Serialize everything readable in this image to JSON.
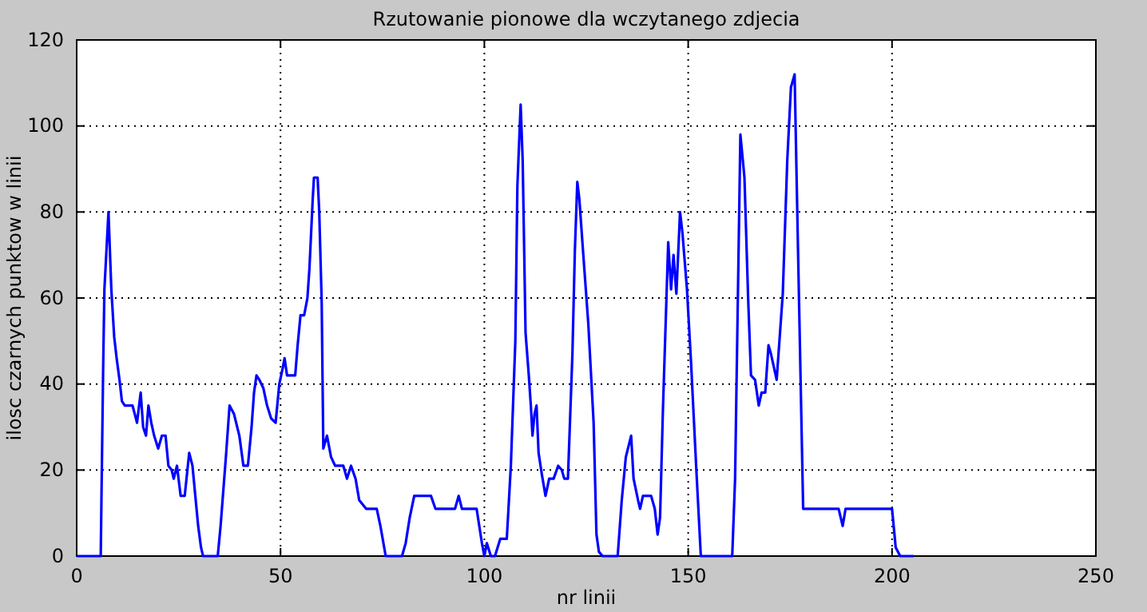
{
  "chart_data": {
    "type": "line",
    "title": "Rzutowanie pionowe dla wczytanego zdjecia",
    "xlabel": "nr linii",
    "ylabel": "ilosc czarnych punktow w linii",
    "xlim": [
      0,
      250
    ],
    "ylim": [
      0,
      120
    ],
    "xticks": [
      0,
      50,
      100,
      150,
      200,
      250
    ],
    "yticks": [
      0,
      20,
      40,
      60,
      80,
      100,
      120
    ],
    "grid": true,
    "line_style": "solid",
    "marker": "none",
    "series": [
      {
        "color": "#0000ff",
        "x": [
          0,
          5.9,
          6.1,
          6.5,
          6.8,
          7.8,
          8.5,
          9.2,
          9.8,
          10.5,
          11.1,
          11.8,
          13.7,
          14.8,
          15.7,
          16.3,
          17,
          17.6,
          18.3,
          19,
          20,
          20.9,
          21.8,
          22.5,
          23.3,
          23.8,
          24.6,
          25.5,
          26.5,
          27.6,
          28.4,
          29.2,
          29.8,
          30.5,
          31,
          34.6,
          35.3,
          36.6,
          37.5,
          38.6,
          39.9,
          40.9,
          42,
          42.9,
          43.5,
          44.1,
          44.8,
          45.8,
          46.7,
          47.7,
          48.8,
          49.7,
          50.6,
          51,
          51.6,
          53.6,
          54.2,
          54.9,
          55.8,
          56.6,
          57.1,
          57.9,
          58.2,
          59.1,
          59.5,
          60.1,
          60.5,
          61.4,
          62.4,
          63.4,
          65.4,
          66.3,
          67.3,
          68.4,
          69.3,
          71,
          73.6,
          74.5,
          75.8,
          79.8,
          80.7,
          81.7,
          82.8,
          86.9,
          88,
          92.8,
          93.7,
          94.5,
          98.1,
          99.4,
          100,
          100.6,
          101.6,
          102.6,
          103.9,
          105.5,
          106.5,
          107.6,
          108.1,
          108.9,
          109.4,
          110.1,
          110.9,
          111.4,
          111.8,
          112.3,
          112.8,
          113.3,
          114.1,
          115,
          115.9,
          117,
          118.1,
          119,
          119.6,
          120.5,
          121.6,
          122.2,
          122.8,
          123.3,
          124.2,
          125.5,
          126.8,
          127.5,
          128.1,
          129,
          132.7,
          133.7,
          134.7,
          136,
          136.6,
          137.7,
          138.2,
          138.9,
          140.9,
          141.8,
          142.5,
          143.1,
          143.8,
          145.1,
          145.8,
          146.4,
          147.1,
          148,
          148.6,
          149.7,
          150.7,
          152,
          153.1,
          160.8,
          161.5,
          162.1,
          162.8,
          163.8,
          164.7,
          165.4,
          166.4,
          167.3,
          168,
          168.9,
          169.7,
          170.3,
          171.7,
          173.2,
          174.3,
          175.2,
          176.1,
          176.9,
          178.2,
          186.9,
          187.9,
          188.6,
          200,
          200.4,
          200.9,
          202,
          205.3
        ],
        "values": [
          0,
          0,
          15,
          44,
          62,
          80,
          62,
          51,
          46,
          41,
          36,
          35,
          35,
          31,
          38,
          30,
          28,
          35,
          31,
          28,
          25,
          28,
          28,
          21,
          20,
          18,
          21,
          14,
          14,
          24,
          21,
          13,
          7,
          2,
          0,
          0,
          7,
          23,
          35,
          33,
          28,
          21,
          21,
          30,
          38,
          42,
          41,
          39,
          35,
          32,
          31,
          40,
          44,
          46,
          42,
          42,
          49,
          56,
          56,
          60,
          67,
          83,
          88,
          88,
          80,
          59,
          25,
          28,
          23,
          21,
          21,
          18,
          21,
          18,
          13,
          11,
          11,
          7,
          0,
          0,
          3,
          9,
          14,
          14,
          11,
          11,
          14,
          11,
          11,
          3,
          0,
          3,
          0,
          0,
          4,
          4,
          21,
          50,
          86,
          105,
          92,
          52,
          42,
          35,
          28,
          33,
          35,
          24,
          19,
          14,
          18,
          18,
          21,
          20,
          18,
          18,
          47,
          71,
          87,
          83,
          71,
          54,
          31,
          5,
          1,
          0,
          0,
          13,
          23,
          28,
          18,
          13,
          11,
          14,
          14,
          11,
          5,
          9,
          34,
          73,
          62,
          70,
          61,
          80,
          75,
          62,
          45,
          20,
          0,
          0,
          18,
          55,
          98,
          88,
          60,
          42,
          41,
          35,
          38,
          38,
          49,
          47,
          41,
          61,
          92,
          109,
          112,
          73,
          11,
          11,
          7,
          11,
          11,
          7,
          2,
          0,
          0
        ]
      }
    ]
  }
}
